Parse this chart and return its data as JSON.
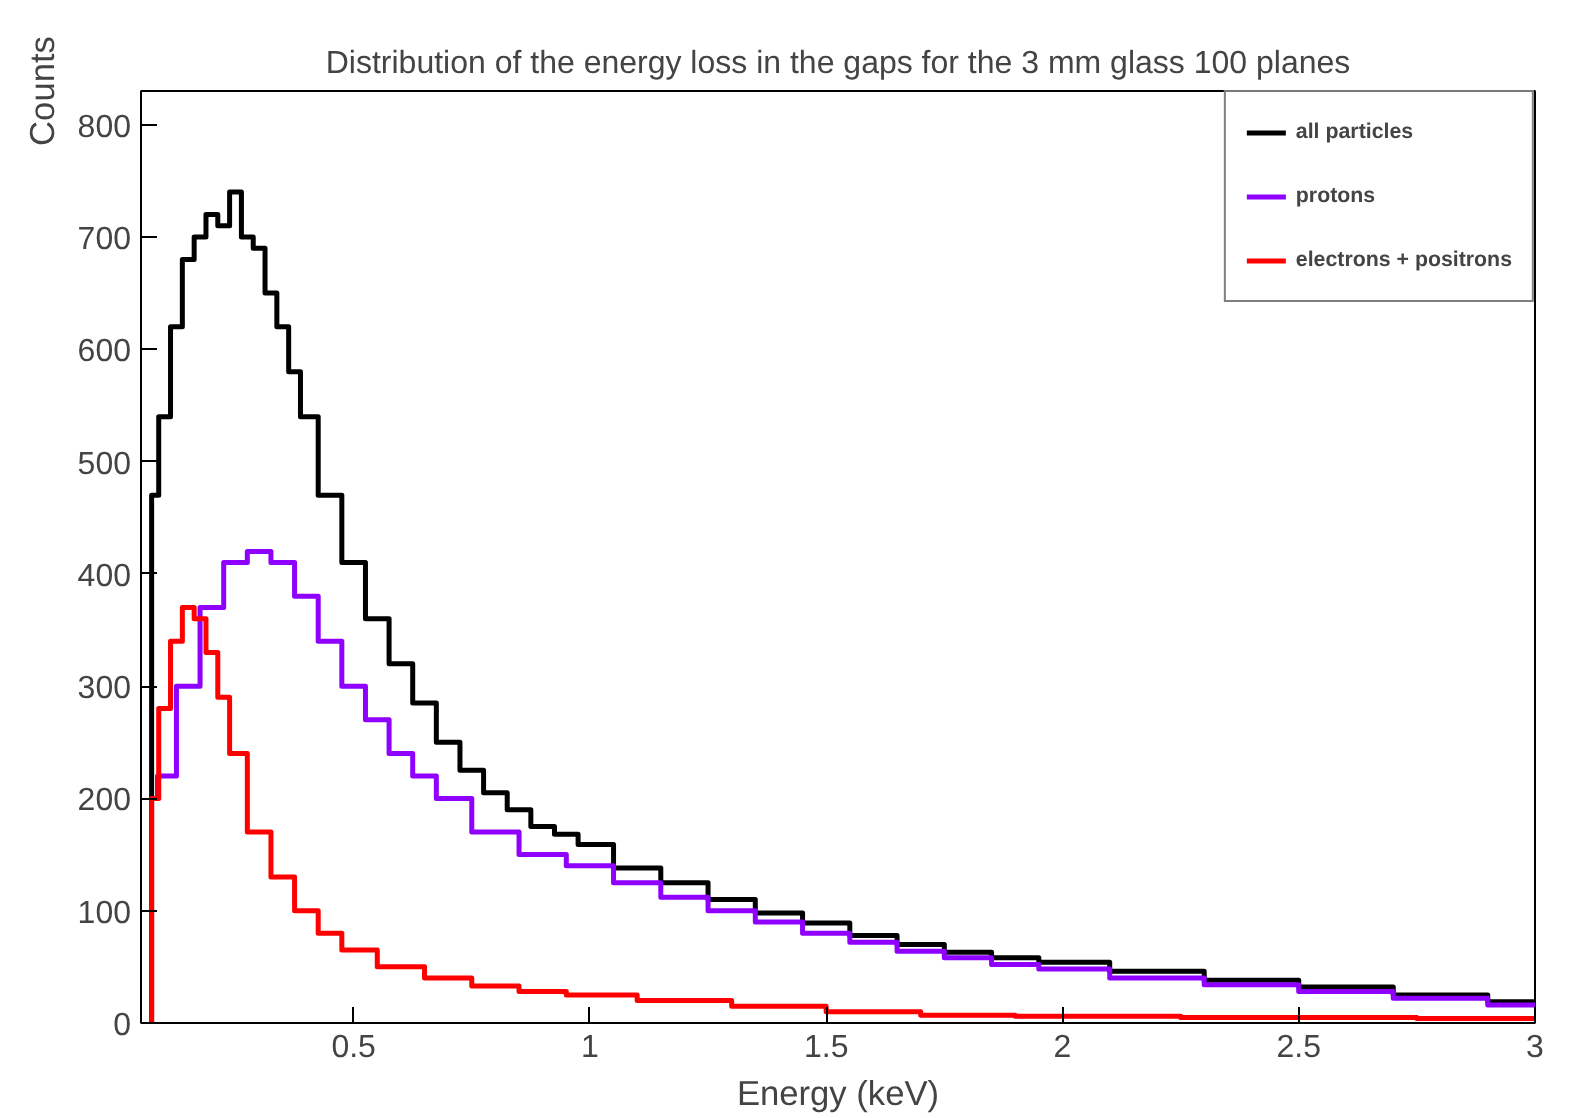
{
  "chart_data": {
    "type": "step",
    "title": "Distribution of the energy loss in the gaps for the 3 mm glass 100 planes",
    "xlabel": "Energy (keV)",
    "ylabel": "Counts",
    "xlim": [
      0.05,
      3.0
    ],
    "ylim": [
      0,
      830
    ],
    "xticks": [
      0.5,
      1,
      1.5,
      2,
      2.5,
      3
    ],
    "yticks": [
      0,
      100,
      200,
      300,
      400,
      500,
      600,
      700,
      800
    ],
    "grid": false,
    "legend": "top right",
    "line_style": "solid",
    "series": [
      {
        "name": "all particles",
        "color": "#000000",
        "x": [
          0.07,
          0.075,
          0.1,
          0.125,
          0.15,
          0.175,
          0.2,
          0.225,
          0.25,
          0.275,
          0.3,
          0.325,
          0.35,
          0.375,
          0.4,
          0.45,
          0.5,
          0.55,
          0.6,
          0.65,
          0.7,
          0.75,
          0.8,
          0.85,
          0.9,
          0.95,
          1.0,
          1.1,
          1.2,
          1.3,
          1.4,
          1.5,
          1.6,
          1.7,
          1.8,
          1.9,
          2.0,
          2.2,
          2.4,
          2.6,
          2.8,
          3.0
        ],
        "values": [
          0,
          470,
          540,
          620,
          680,
          700,
          720,
          710,
          740,
          700,
          690,
          650,
          620,
          580,
          540,
          470,
          410,
          360,
          320,
          285,
          250,
          225,
          205,
          190,
          175,
          168,
          159,
          138,
          125,
          110,
          98,
          89,
          78,
          70,
          63,
          58,
          54,
          46,
          38,
          32,
          25,
          19
        ]
      },
      {
        "name": "protons",
        "color": "#8f00ff",
        "x": [
          0.07,
          0.1,
          0.15,
          0.2,
          0.25,
          0.3,
          0.35,
          0.4,
          0.45,
          0.5,
          0.55,
          0.6,
          0.65,
          0.7,
          0.8,
          0.9,
          1.0,
          1.1,
          1.2,
          1.3,
          1.4,
          1.5,
          1.6,
          1.7,
          1.8,
          1.9,
          2.0,
          2.2,
          2.4,
          2.6,
          2.8,
          3.0
        ],
        "values": [
          200,
          220,
          300,
          370,
          410,
          420,
          410,
          380,
          340,
          300,
          270,
          240,
          220,
          200,
          170,
          150,
          140,
          125,
          112,
          100,
          90,
          80,
          72,
          64,
          58,
          52,
          48,
          40,
          34,
          28,
          22,
          16
        ]
      },
      {
        "name": "electrons + positrons",
        "color": "#ff0000",
        "x": [
          0.07,
          0.075,
          0.1,
          0.125,
          0.15,
          0.175,
          0.2,
          0.225,
          0.25,
          0.3,
          0.35,
          0.4,
          0.45,
          0.5,
          0.6,
          0.7,
          0.8,
          0.9,
          1.0,
          1.2,
          1.4,
          1.6,
          1.8,
          2.0,
          2.5,
          3.0
        ],
        "values": [
          0,
          200,
          280,
          340,
          370,
          360,
          330,
          290,
          240,
          170,
          130,
          100,
          80,
          65,
          50,
          40,
          33,
          28,
          25,
          20,
          15,
          10,
          7,
          6,
          5,
          4
        ]
      }
    ]
  }
}
